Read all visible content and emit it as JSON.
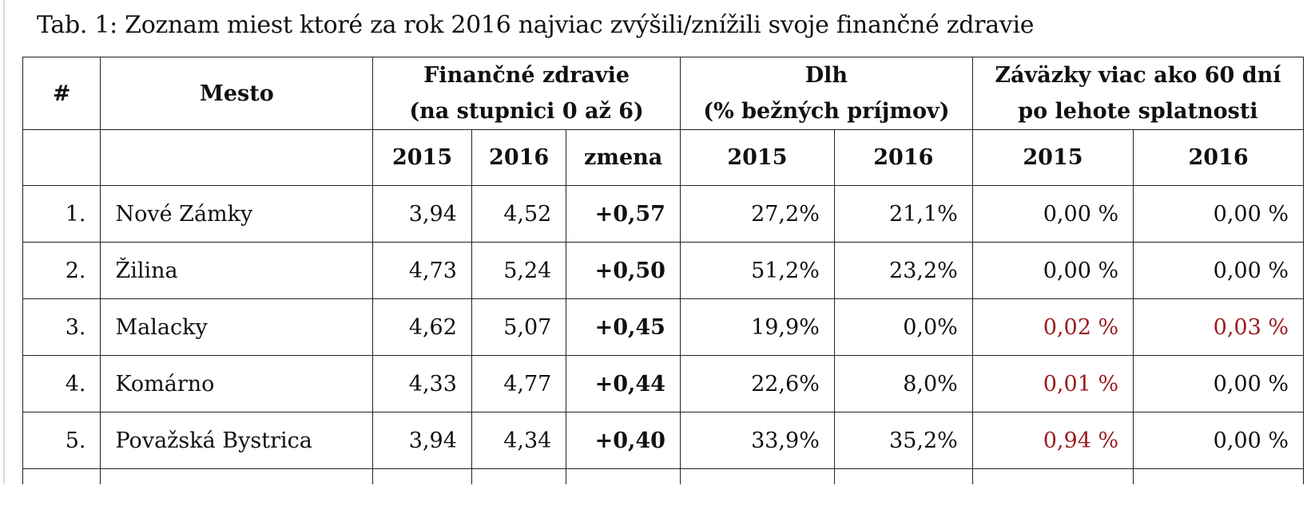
{
  "caption": "Tab. 1: Zoznam miest ktoré za rok 2016 najviac zvýšili/znížili svoje finančné zdravie",
  "header": {
    "index": "#",
    "city": "Mesto",
    "health_line1": "Finančné zdravie",
    "health_line2": "(na stupnici 0 až 6)",
    "debt_line1": "Dlh",
    "debt_line2": "(% bežných príjmov)",
    "liab_line1": "Záväzky viac ako 60 dní",
    "liab_line2": "po lehote splatnosti",
    "y2015": "2015",
    "y2016": "2016",
    "change": "zmena"
  },
  "rows": [
    {
      "rank": "1.",
      "city": "Nové Zámky",
      "h2015": "3,94",
      "h2016": "4,52",
      "change": "+0,57",
      "d2015": "27,2%",
      "d2016": "21,1%",
      "l2015": "0,00 %",
      "l2016": "0,00 %"
    },
    {
      "rank": "2.",
      "city": "Žilina",
      "h2015": "4,73",
      "h2016": "5,24",
      "change": "+0,50",
      "d2015": "51,2%",
      "d2016": "23,2%",
      "l2015": "0,00 %",
      "l2016": "0,00 %"
    },
    {
      "rank": "3.",
      "city": "Malacky",
      "h2015": "4,62",
      "h2016": "5,07",
      "change": "+0,45",
      "d2015": "19,9%",
      "d2016": "0,0%",
      "l2015": "0,02 %",
      "l2016": "0,03 %"
    },
    {
      "rank": "4.",
      "city": "Komárno",
      "h2015": "4,33",
      "h2016": "4,77",
      "change": "+0,44",
      "d2015": "22,6%",
      "d2016": "8,0%",
      "l2015": "0,01 %",
      "l2016": "0,00 %"
    },
    {
      "rank": "5.",
      "city": "Považská Bystrica",
      "h2015": "3,94",
      "h2016": "4,34",
      "change": "+0,40",
      "d2015": "33,9%",
      "d2016": "35,2%",
      "l2015": "0,94 %",
      "l2016": "0,00 %"
    }
  ],
  "colors": {
    "alert": "#9b1c1c",
    "text": "#111111",
    "border": "#222222"
  }
}
